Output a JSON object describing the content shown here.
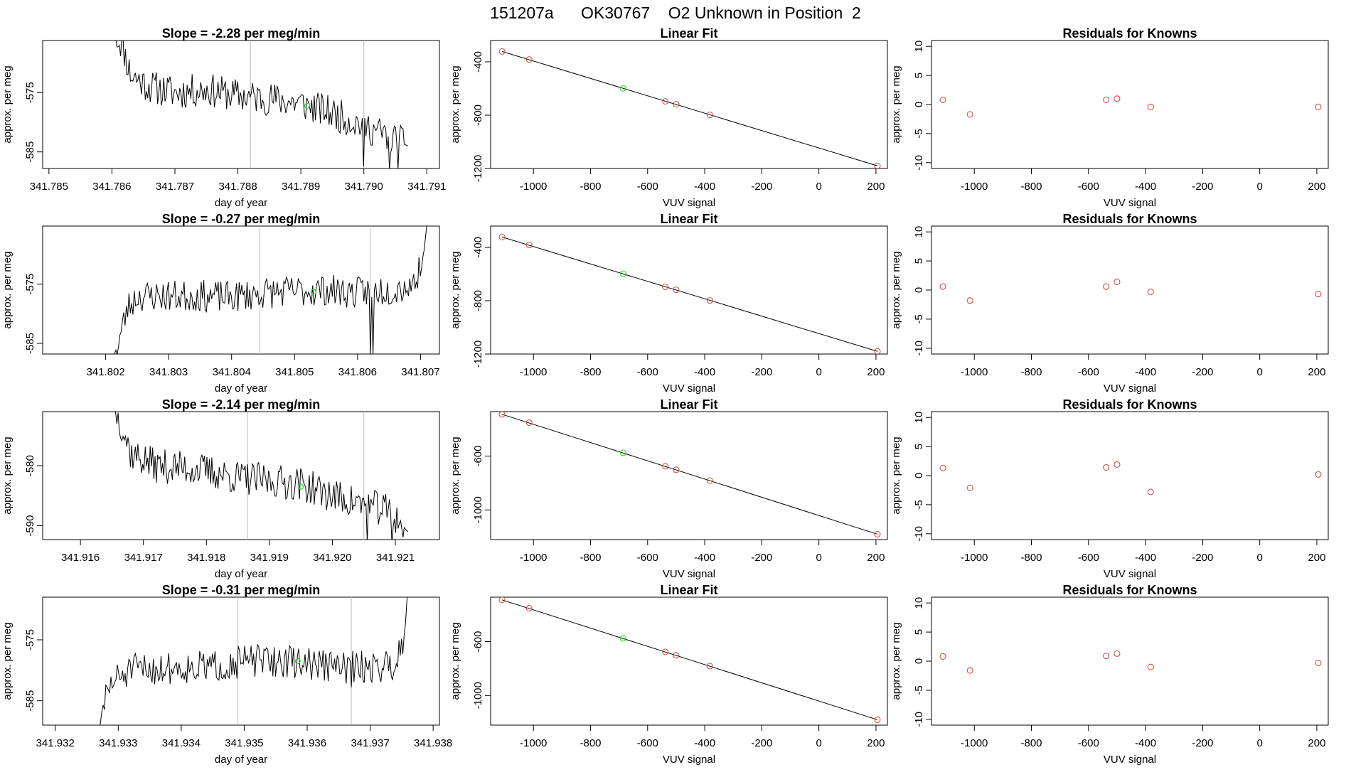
{
  "main_title": "151207a      OK30767    O2 Unknown in Position  2",
  "colors": {
    "trace": "#000000",
    "frame": "#000000",
    "vline": "#bbbbbb",
    "known": "#cd4f4f",
    "unknown": "#22dd22"
  },
  "chart_data": [
    {
      "type": "line",
      "title": "Slope =  -2.28  per meg/min",
      "xlabel": "day of year",
      "ylabel": "approx. per meg",
      "xlim": [
        341.7849,
        341.7912
      ],
      "ylim": [
        -587.8,
        -566.2
      ],
      "xticks": [
        "341.785",
        "341.786",
        "341.787",
        "341.788",
        "341.789",
        "341.790",
        "341.791"
      ],
      "yticks": [
        "-575",
        "-585"
      ],
      "vlines": [
        341.7882,
        341.79
      ],
      "highlight": {
        "x": 341.7891,
        "y": -577.2
      },
      "trace": {
        "x_start": 341.786,
        "x_end": 341.7907,
        "keypoints": [
          [
            341.786,
            -565
          ],
          [
            341.78615,
            -566.5
          ],
          [
            341.7863,
            -572
          ],
          [
            341.7866,
            -574
          ],
          [
            341.787,
            -575
          ],
          [
            341.7875,
            -574.5
          ],
          [
            341.788,
            -575.5
          ],
          [
            341.7885,
            -576
          ],
          [
            341.789,
            -576.8
          ],
          [
            341.7895,
            -578.5
          ],
          [
            341.79,
            -580.5
          ],
          [
            341.7903,
            -582
          ],
          [
            341.7905,
            -583
          ],
          [
            341.7907,
            -584
          ]
        ],
        "amp": 1.6,
        "seed": 11,
        "spikes": [
          [
            341.79,
            -587.5
          ],
          [
            341.7904,
            -588
          ],
          [
            341.79055,
            -588
          ]
        ]
      }
    },
    {
      "type": "scatter",
      "title": "Linear Fit",
      "xlabel": "VUV signal",
      "ylabel": "approx. per meg",
      "xlim": [
        -1150,
        240
      ],
      "ylim": [
        -1200,
        -240
      ],
      "xticks": [
        -1000,
        -800,
        -600,
        -400,
        -200,
        0,
        200
      ],
      "yticks": [
        -400,
        -800,
        -1200
      ],
      "fit_line": [
        [
          -1110,
          -322
        ],
        [
          205,
          -1180
        ]
      ],
      "known_points": [
        [
          -1110,
          -322
        ],
        [
          -1015,
          -382
        ],
        [
          -538,
          -696
        ],
        [
          -500,
          -718
        ],
        [
          -382,
          -798
        ],
        [
          205,
          -1180
        ]
      ],
      "unknown_point": [
        -686,
        -598
      ]
    },
    {
      "type": "scatter",
      "title": "Residuals for Knowns",
      "xlabel": "VUV signal",
      "ylabel": "approx. per meg",
      "xlim": [
        -1150,
        240
      ],
      "ylim": [
        -11,
        11
      ],
      "xticks": [
        -1000,
        -800,
        -600,
        -400,
        -200,
        0,
        200
      ],
      "yticks": [
        10,
        5,
        0,
        -5,
        -10
      ],
      "points": [
        [
          -1110,
          0.8
        ],
        [
          -1015,
          -1.7
        ],
        [
          -538,
          0.8
        ],
        [
          -500,
          1.0
        ],
        [
          -382,
          -0.4
        ],
        [
          205,
          -0.4
        ]
      ]
    },
    {
      "type": "line",
      "title": "Slope =  -0.27  per meg/min",
      "xlabel": "day of year",
      "ylabel": "approx. per meg",
      "xlim": [
        341.801,
        341.8073
      ],
      "ylim": [
        -586.8,
        -565.2
      ],
      "xticks": [
        "341.802",
        "341.803",
        "341.804",
        "341.805",
        "341.806",
        "341.807"
      ],
      "yticks": [
        "-575",
        "-585"
      ],
      "vlines": [
        341.80445,
        341.8062
      ],
      "highlight": {
        "x": 341.8053,
        "y": -576.3
      },
      "trace": {
        "x_start": 341.8021,
        "x_end": 341.8071,
        "keypoints": [
          [
            341.8021,
            -588
          ],
          [
            341.8022,
            -585
          ],
          [
            341.80235,
            -579
          ],
          [
            341.8025,
            -577
          ],
          [
            341.803,
            -577
          ],
          [
            341.8035,
            -577
          ],
          [
            341.804,
            -577.2
          ],
          [
            341.8045,
            -576.5
          ],
          [
            341.805,
            -576.2
          ],
          [
            341.8055,
            -576
          ],
          [
            341.806,
            -576.5
          ],
          [
            341.8062,
            -576
          ],
          [
            341.8065,
            -576
          ],
          [
            341.8069,
            -575
          ],
          [
            341.80705,
            -570
          ],
          [
            341.8071,
            -565
          ]
        ],
        "amp": 1.5,
        "seed": 23,
        "spikes": [
          [
            341.8062,
            -587
          ],
          [
            341.80625,
            -587
          ]
        ]
      }
    },
    {
      "type": "scatter",
      "title": "Linear Fit",
      "xlabel": "VUV signal",
      "ylabel": "approx. per meg",
      "xlim": [
        -1150,
        240
      ],
      "ylim": [
        -1200,
        -240
      ],
      "xticks": [
        -1000,
        -800,
        -600,
        -400,
        -200,
        0,
        200
      ],
      "yticks": [
        -400,
        -800,
        -1200
      ],
      "fit_line": [
        [
          -1110,
          -322
        ],
        [
          205,
          -1180
        ]
      ],
      "known_points": [
        [
          -1110,
          -322
        ],
        [
          -1015,
          -382
        ],
        [
          -538,
          -696
        ],
        [
          -500,
          -718
        ],
        [
          -382,
          -798
        ],
        [
          205,
          -1180
        ]
      ],
      "unknown_point": [
        -686,
        -598
      ]
    },
    {
      "type": "scatter",
      "title": "Residuals for Knowns",
      "xlabel": "VUV signal",
      "ylabel": "approx. per meg",
      "xlim": [
        -1150,
        240
      ],
      "ylim": [
        -11,
        11
      ],
      "xticks": [
        -1000,
        -800,
        -600,
        -400,
        -200,
        0,
        200
      ],
      "yticks": [
        10,
        5,
        0,
        -5,
        -10
      ],
      "points": [
        [
          -1110,
          0.6
        ],
        [
          -1015,
          -1.8
        ],
        [
          -538,
          0.6
        ],
        [
          -500,
          1.4
        ],
        [
          -382,
          -0.3
        ],
        [
          205,
          -0.7
        ]
      ]
    },
    {
      "type": "line",
      "title": "Slope =  -2.14  per meg/min",
      "xlabel": "day of year",
      "ylabel": "approx. per meg",
      "xlim": [
        341.9154,
        341.9217
      ],
      "ylim": [
        -592.3,
        -571.0
      ],
      "xticks": [
        "341.916",
        "341.917",
        "341.918",
        "341.919",
        "341.920",
        "341.921"
      ],
      "yticks": [
        "-580",
        "-590"
      ],
      "vlines": [
        341.91865,
        341.9205
      ],
      "highlight": {
        "x": 341.9195,
        "y": -583.5
      },
      "trace": {
        "x_start": 341.9165,
        "x_end": 341.9212,
        "keypoints": [
          [
            341.9165,
            -570
          ],
          [
            341.91665,
            -573
          ],
          [
            341.9168,
            -578
          ],
          [
            341.9172,
            -580
          ],
          [
            341.9178,
            -580.5
          ],
          [
            341.9185,
            -582
          ],
          [
            341.919,
            -582.5
          ],
          [
            341.9195,
            -583
          ],
          [
            341.92,
            -585
          ],
          [
            341.9205,
            -586.5
          ],
          [
            341.9209,
            -587.5
          ],
          [
            341.9212,
            -591
          ]
        ],
        "amp": 1.6,
        "seed": 37,
        "spikes": [
          [
            341.92055,
            -593
          ],
          [
            341.92095,
            -593
          ]
        ]
      }
    },
    {
      "type": "scatter",
      "title": "Linear Fit",
      "xlabel": "VUV signal",
      "ylabel": "approx. per meg",
      "xlim": [
        -1150,
        240
      ],
      "ylim": [
        -1220,
        -270
      ],
      "xticks": [
        -1000,
        -800,
        -600,
        -400,
        -200,
        0,
        200
      ],
      "yticks": [
        -600,
        -1000
      ],
      "fit_line": [
        [
          -1110,
          -290
        ],
        [
          205,
          -1180
        ]
      ],
      "known_points": [
        [
          -1110,
          -290
        ],
        [
          -1015,
          -352
        ],
        [
          -538,
          -676
        ],
        [
          -500,
          -702
        ],
        [
          -382,
          -782
        ],
        [
          205,
          -1180
        ]
      ],
      "unknown_point": [
        -686,
        -576
      ]
    },
    {
      "type": "scatter",
      "title": "Residuals for Knowns",
      "xlabel": "VUV signal",
      "ylabel": "approx. per meg",
      "xlim": [
        -1150,
        240
      ],
      "ylim": [
        -11,
        11
      ],
      "xticks": [
        -1000,
        -800,
        -600,
        -400,
        -200,
        0,
        200
      ],
      "yticks": [
        10,
        5,
        0,
        -5,
        -10
      ],
      "points": [
        [
          -1110,
          1.3
        ],
        [
          -1015,
          -2.1
        ],
        [
          -538,
          1.4
        ],
        [
          -500,
          1.9
        ],
        [
          -382,
          -2.8
        ],
        [
          205,
          0.2
        ]
      ]
    },
    {
      "type": "line",
      "title": "Slope =  -0.31  per meg/min",
      "xlabel": "day of year",
      "ylabel": "approx. per meg",
      "xlim": [
        341.9318,
        341.9381
      ],
      "ylim": [
        -589.0,
        -568.0
      ],
      "xticks": [
        "341.932",
        "341.933",
        "341.934",
        "341.935",
        "341.936",
        "341.937",
        "341.938"
      ],
      "yticks": [
        "-575",
        "-585"
      ],
      "vlines": [
        341.9349,
        341.9367
      ],
      "highlight": {
        "x": 341.93585,
        "y": -578.5
      },
      "trace": {
        "x_start": 341.9327,
        "x_end": 341.9376,
        "keypoints": [
          [
            341.9327,
            -590
          ],
          [
            341.93275,
            -586
          ],
          [
            341.9329,
            -582
          ],
          [
            341.9332,
            -580
          ],
          [
            341.934,
            -579.5
          ],
          [
            341.9345,
            -579.5
          ],
          [
            341.935,
            -578.5
          ],
          [
            341.9355,
            -578.5
          ],
          [
            341.936,
            -578.8
          ],
          [
            341.9365,
            -579.5
          ],
          [
            341.937,
            -579.5
          ],
          [
            341.9374,
            -579
          ],
          [
            341.93755,
            -574
          ],
          [
            341.9376,
            -566
          ]
        ],
        "amp": 1.5,
        "seed": 51,
        "spikes": [
          [
            341.9367,
            -582.8
          ]
        ]
      }
    },
    {
      "type": "scatter",
      "title": "Linear Fit",
      "xlabel": "VUV signal",
      "ylabel": "approx. per meg",
      "xlim": [
        -1150,
        240
      ],
      "ylim": [
        -1220,
        -270
      ],
      "xticks": [
        -1000,
        -800,
        -600,
        -400,
        -200,
        0,
        200
      ],
      "yticks": [
        -600,
        -1000
      ],
      "fit_line": [
        [
          -1110,
          -290
        ],
        [
          205,
          -1180
        ]
      ],
      "known_points": [
        [
          -1110,
          -290
        ],
        [
          -1015,
          -352
        ],
        [
          -538,
          -676
        ],
        [
          -500,
          -702
        ],
        [
          -382,
          -782
        ],
        [
          205,
          -1180
        ]
      ],
      "unknown_point": [
        -686,
        -576
      ]
    },
    {
      "type": "scatter",
      "title": "Residuals for Knowns",
      "xlabel": "VUV signal",
      "ylabel": "approx. per meg",
      "xlim": [
        -1150,
        240
      ],
      "ylim": [
        -11,
        11
      ],
      "xticks": [
        -1000,
        -800,
        -600,
        -400,
        -200,
        0,
        200
      ],
      "yticks": [
        10,
        5,
        0,
        -5,
        -10
      ],
      "points": [
        [
          -1110,
          0.8
        ],
        [
          -1015,
          -1.6
        ],
        [
          -538,
          0.9
        ],
        [
          -500,
          1.3
        ],
        [
          -382,
          -1.0
        ],
        [
          205,
          -0.3
        ]
      ]
    }
  ]
}
